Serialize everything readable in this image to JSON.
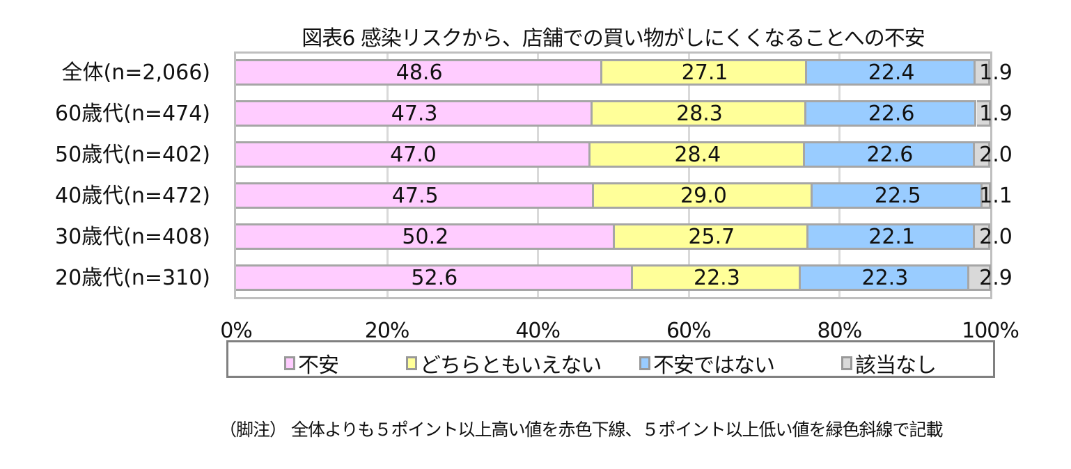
{
  "chart_data": {
    "type": "bar",
    "orientation": "horizontal",
    "stacked": true,
    "percent": true,
    "title": "図表6  感染リスクから、店舗での買い物がしにくくなることへの不安",
    "categories": [
      "全体(n=2,066)",
      "60歳代(n=474)",
      "50歳代(n=402)",
      "40歳代(n=472)",
      "30歳代(n=408)",
      "20歳代(n=310)"
    ],
    "series": [
      {
        "name": "不安",
        "color": "#ffccff",
        "values": [
          48.6,
          47.3,
          47.0,
          47.5,
          50.2,
          52.6
        ]
      },
      {
        "name": "どちらともいえない",
        "color": "#ffff99",
        "values": [
          27.1,
          28.3,
          28.4,
          29.0,
          25.7,
          22.3
        ]
      },
      {
        "name": "不安ではない",
        "color": "#99ccff",
        "values": [
          22.4,
          22.6,
          22.6,
          22.5,
          22.1,
          22.3
        ]
      },
      {
        "name": "該当なし",
        "color": "#d9d9d9",
        "values": [
          1.9,
          1.9,
          2.0,
          1.1,
          2.0,
          2.9
        ]
      }
    ],
    "xticks": [
      "0%",
      "20%",
      "40%",
      "60%",
      "80%",
      "100%"
    ],
    "xlim": [
      0,
      100
    ],
    "xlabel": "",
    "ylabel": "",
    "grid": true,
    "legend_position": "bottom"
  },
  "footnote": "（脚注） 全体よりも５ポイント以上高い値を赤色下線、５ポイント以上低い値を緑色斜線で記載"
}
